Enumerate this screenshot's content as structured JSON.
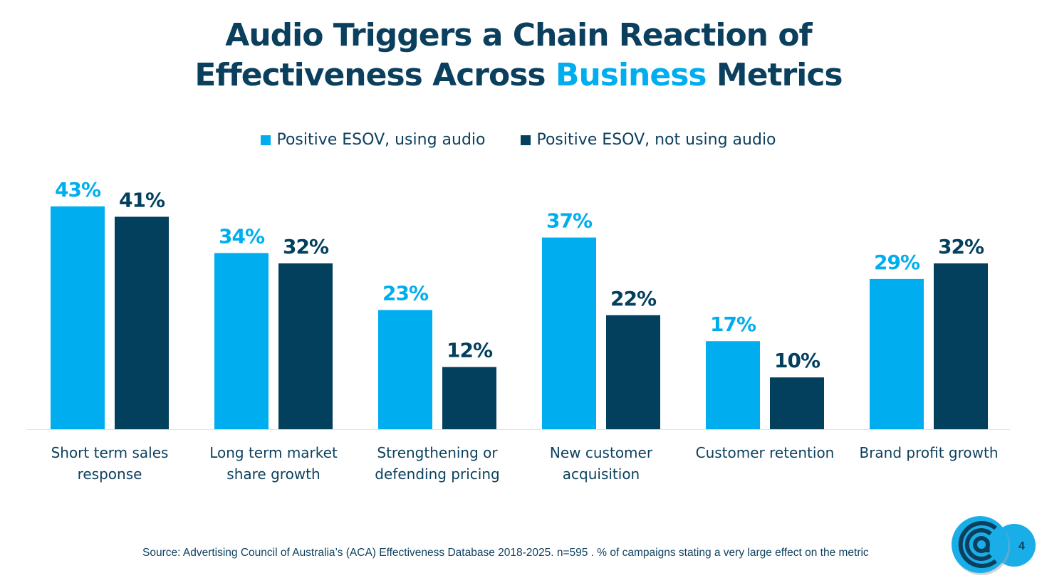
{
  "title": {
    "part1": "Audio Triggers a Chain Reaction of",
    "part2a": "Effectiveness Across ",
    "highlight": "Business",
    "part2b": " Metrics"
  },
  "chart_data": {
    "type": "bar",
    "categories": [
      [
        "Short term sales",
        "response"
      ],
      [
        "Long term market",
        "share growth"
      ],
      [
        "Strengthening or",
        "defending pricing"
      ],
      [
        "New customer",
        "acquisition"
      ],
      [
        "Customer retention"
      ],
      [
        "Brand profit growth"
      ]
    ],
    "series": [
      {
        "name": "Positive ESOV, using audio",
        "color": "#00aeef",
        "values": [
          43,
          34,
          23,
          37,
          17,
          29
        ]
      },
      {
        "name": "Positive ESOV, not using audio",
        "color": "#03405e",
        "values": [
          41,
          32,
          12,
          22,
          10,
          32
        ]
      }
    ],
    "value_suffix": "%",
    "ylim": [
      0,
      45
    ],
    "grid": false,
    "legend": "top-center"
  },
  "source": "Source: Advertising Council of Australia’s (ACA) Effectiveness Database 2018-2025. n=595 . % of campaigns stating a very large effect on the metric",
  "page_number": "4"
}
